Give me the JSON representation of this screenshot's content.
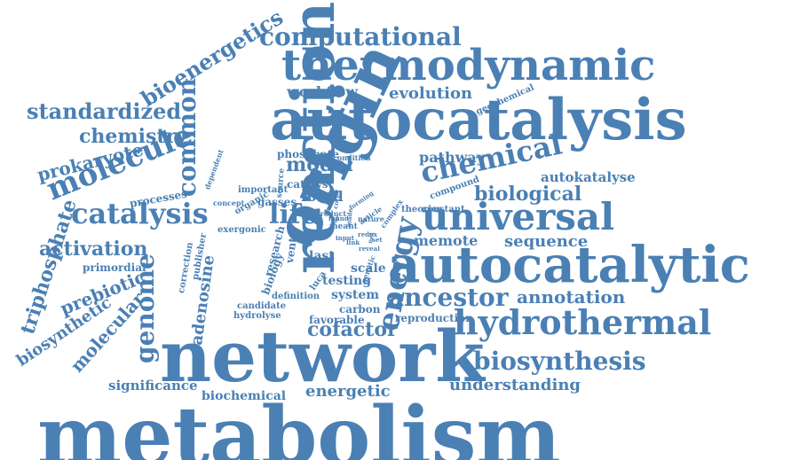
{
  "color": "#4a80b4",
  "words": [
    {
      "text": "metabolism"
    },
    {
      "text": "network"
    },
    {
      "text": "autocatalysis"
    },
    {
      "text": "autocatalytic"
    },
    {
      "text": "thermodynamic"
    },
    {
      "text": "reaction"
    },
    {
      "text": "origin"
    },
    {
      "text": "universal"
    },
    {
      "text": "hydrothermal"
    },
    {
      "text": "computational"
    },
    {
      "text": "catalysis"
    },
    {
      "text": "molecule"
    },
    {
      "text": "chemical"
    },
    {
      "text": "energy"
    },
    {
      "text": "ancestor"
    },
    {
      "text": "biosynthesis"
    },
    {
      "text": "common"
    },
    {
      "text": "genome"
    },
    {
      "text": "standardized"
    },
    {
      "text": "bioenergetics"
    },
    {
      "text": "chemistry"
    },
    {
      "text": "prokaryote"
    },
    {
      "text": "triphosphate"
    },
    {
      "text": "activation"
    },
    {
      "text": "prebiotic"
    },
    {
      "text": "biosynthetic"
    },
    {
      "text": "molecular"
    },
    {
      "text": "model"
    },
    {
      "text": "life"
    },
    {
      "text": "biological"
    },
    {
      "text": "annotation"
    },
    {
      "text": "cofactor"
    },
    {
      "text": "energetic"
    },
    {
      "text": "understanding"
    },
    {
      "text": "significance"
    },
    {
      "text": "biochemical"
    },
    {
      "text": "workflow"
    },
    {
      "text": "evolution"
    },
    {
      "text": "pathway"
    },
    {
      "text": "autokatalyse"
    },
    {
      "text": "memote"
    },
    {
      "text": "sequence"
    },
    {
      "text": "adenosine"
    },
    {
      "text": "fossil"
    },
    {
      "text": "primordial"
    },
    {
      "text": "processes"
    },
    {
      "text": "testing"
    },
    {
      "text": "system"
    },
    {
      "text": "scale"
    },
    {
      "text": "last"
    },
    {
      "text": "carbon"
    },
    {
      "text": "favorable"
    },
    {
      "text": "reproduction"
    },
    {
      "text": "hydrolyse"
    },
    {
      "text": "candidate"
    },
    {
      "text": "definition"
    },
    {
      "text": "catalyst"
    },
    {
      "text": "gasses"
    },
    {
      "text": "phosphate"
    },
    {
      "text": "theories"
    },
    {
      "text": "constant"
    },
    {
      "text": "compound"
    },
    {
      "text": "geochemical"
    },
    {
      "text": "exergonic"
    },
    {
      "text": "important"
    },
    {
      "text": "organic"
    },
    {
      "text": "concept"
    },
    {
      "text": "dependent"
    },
    {
      "text": "correction"
    },
    {
      "text": "publisher"
    },
    {
      "text": "research"
    },
    {
      "text": "biology"
    },
    {
      "text": "vent"
    },
    {
      "text": "luca"
    },
    {
      "text": "genetic"
    },
    {
      "text": "product"
    },
    {
      "text": "source"
    },
    {
      "text": "condition"
    },
    {
      "text": "article"
    },
    {
      "text": "nature"
    },
    {
      "text": "complex"
    },
    {
      "text": "meant"
    },
    {
      "text": "input"
    },
    {
      "text": "provide"
    },
    {
      "text": "reveal"
    },
    {
      "text": "redox"
    },
    {
      "text": "made"
    },
    {
      "text": "set"
    },
    {
      "text": "net"
    },
    {
      "text": "forming"
    },
    {
      "text": "found"
    },
    {
      "text": "core"
    },
    {
      "text": "link"
    }
  ]
}
